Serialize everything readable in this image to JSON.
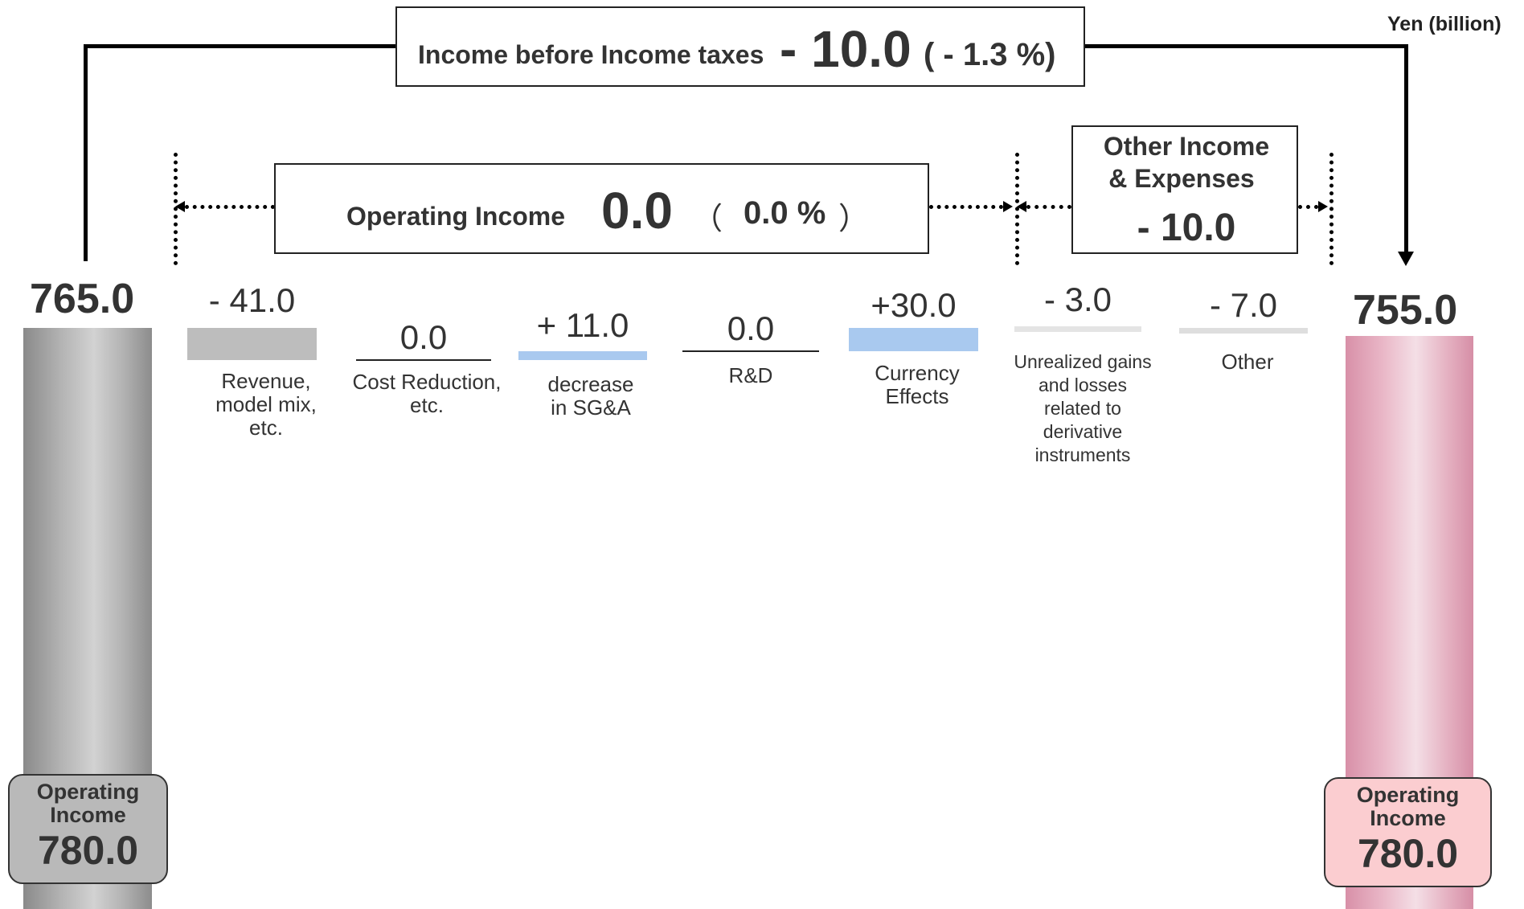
{
  "unit_label": "Yen (billion)",
  "income_before_taxes": {
    "label": "Income before Income taxes",
    "value": "- 10.0",
    "percent": "( - 1.3 %)"
  },
  "operating_income_change": {
    "label": "Operating Income",
    "value": "0.0",
    "percent_open": "（",
    "percent": "0.0 %",
    "percent_close": "）"
  },
  "other_income_expenses": {
    "label_line1": "Other Income",
    "label_line2": "& Expenses",
    "value": "- 10.0"
  },
  "left": {
    "top_value": "765.0",
    "card_label_line1": "Operating",
    "card_label_line2": "Income",
    "card_value": "780.0",
    "card_color": "#b9b9b9"
  },
  "right": {
    "top_value": "755.0",
    "card_label_line1": "Operating",
    "card_label_line2": "Income",
    "card_value": "780.0",
    "card_color": "#fbcdd0"
  },
  "chart_data": {
    "type": "bar",
    "unit": "Yen (billion)",
    "start": {
      "label": "765.0",
      "value": 765.0
    },
    "end": {
      "label": "755.0",
      "value": 755.0
    },
    "factors": [
      {
        "value_label": "- 41.0",
        "value": -41.0,
        "label_lines": [
          "Revenue,",
          "model mix,",
          "etc."
        ],
        "color": "#bdbdbd"
      },
      {
        "value_label": "0.0",
        "value": 0.0,
        "label_lines": [
          "Cost Reduction,",
          "etc."
        ],
        "color": "#222222"
      },
      {
        "value_label": "+ 11.0",
        "value": 11.0,
        "label_lines": [
          "decrease",
          "in SG&A"
        ],
        "color": "#a9c9ef"
      },
      {
        "value_label": "0.0",
        "value": 0.0,
        "label_lines": [
          "R&D"
        ],
        "color": "#222222"
      },
      {
        "value_label": "+30.0",
        "value": 30.0,
        "label_lines": [
          "Currency",
          "Effects"
        ],
        "color": "#a9c9ef"
      },
      {
        "value_label": "- 3.0",
        "value": -3.0,
        "label_lines": [
          "Unrealized gains",
          "and losses",
          "related to",
          "derivative",
          "instruments"
        ],
        "color": "#e4e4e4"
      },
      {
        "value_label": "- 7.0",
        "value": -7.0,
        "label_lines": [
          "Other"
        ],
        "color": "#dedede"
      }
    ]
  }
}
